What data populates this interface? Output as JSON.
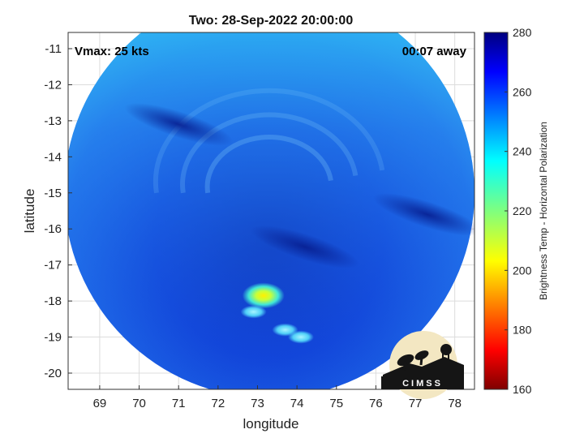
{
  "chart_data": {
    "type": "heatmap",
    "title": "Two: 28-Sep-2022 20:00:00",
    "xlabel": "longitude",
    "ylabel": "latitude",
    "xlim": [
      68.2,
      78.5
    ],
    "ylim": [
      -20.45,
      -10.55
    ],
    "xticks": [
      69,
      70,
      71,
      72,
      73,
      74,
      75,
      76,
      77,
      78
    ],
    "yticks": [
      -11,
      -12,
      -13,
      -14,
      -15,
      -16,
      -17,
      -18,
      -19,
      -20
    ],
    "grid": true,
    "annotations": {
      "vmax": "Vmax: 25 kts",
      "time_offset": "00:07 away"
    },
    "swath": {
      "center": [
        73.3,
        -15.0
      ],
      "radius_lon": 5.2
    },
    "colorbar": {
      "label": "Brightness Temp - Horizontal Polarization",
      "range": [
        160,
        280
      ],
      "ticks": [
        280,
        260,
        240,
        220,
        200,
        180,
        160
      ],
      "colormap": "jet"
    },
    "features": [
      {
        "type": "cold-core",
        "lon": 73.15,
        "lat": -17.85,
        "value": 205
      },
      {
        "type": "cold-cell",
        "lon": 73.7,
        "lat": -18.8,
        "value": 238
      },
      {
        "type": "cold-cell",
        "lon": 74.1,
        "lat": -19.0,
        "value": 236
      },
      {
        "type": "cold-cell",
        "lon": 72.9,
        "lat": -18.3,
        "value": 240
      },
      {
        "type": "warm-band",
        "lon": 71.0,
        "lat": -13.1,
        "value": 272
      },
      {
        "type": "warm-band",
        "lon": 74.2,
        "lat": -16.5,
        "value": 274
      },
      {
        "type": "warm-band",
        "lon": 77.3,
        "lat": -15.6,
        "value": 270
      }
    ],
    "typical_values": {
      "north": 245,
      "center": 262,
      "south": 268
    }
  },
  "logo": {
    "text": "CIMSS"
  }
}
